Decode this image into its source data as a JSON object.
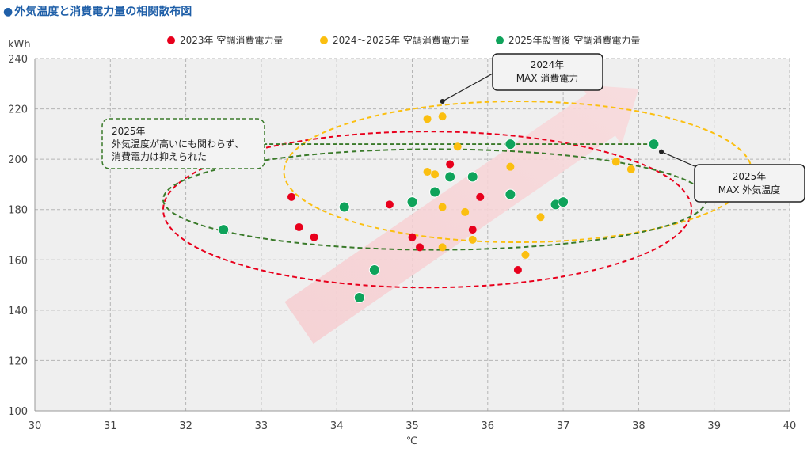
{
  "page_title": "外気温度と消費電力量の相関散布図",
  "chart_data": {
    "type": "scatter",
    "title": "外気温度と消費電力量の相関散布図",
    "xlabel": "℃",
    "ylabel": "kWh",
    "xlim": [
      30,
      40
    ],
    "ylim": [
      100,
      240
    ],
    "xticks": [
      30,
      31,
      32,
      33,
      34,
      35,
      36,
      37,
      38,
      39,
      40
    ],
    "yticks": [
      100,
      120,
      140,
      160,
      180,
      200,
      220,
      240
    ],
    "grid": true,
    "legend_position": "top-center",
    "series": [
      {
        "name": "2023年 空調消費電力量",
        "color": "#e8001c",
        "points": [
          [
            33.4,
            185
          ],
          [
            33.5,
            173
          ],
          [
            33.7,
            169
          ],
          [
            34.7,
            182
          ],
          [
            35.0,
            169
          ],
          [
            35.1,
            165
          ],
          [
            35.5,
            198
          ],
          [
            35.8,
            172
          ],
          [
            35.9,
            185
          ],
          [
            36.4,
            156
          ]
        ]
      },
      {
        "name": "2024～2025年 空調消費電力量",
        "color": "#fbbf10",
        "points": [
          [
            35.2,
            216
          ],
          [
            35.4,
            217
          ],
          [
            35.2,
            195
          ],
          [
            35.3,
            194
          ],
          [
            35.6,
            205
          ],
          [
            35.4,
            181
          ],
          [
            35.7,
            179
          ],
          [
            35.8,
            168
          ],
          [
            35.4,
            165
          ],
          [
            36.3,
            197
          ],
          [
            36.5,
            162
          ],
          [
            36.7,
            177
          ],
          [
            37.7,
            199
          ],
          [
            37.9,
            196
          ]
        ]
      },
      {
        "name": "2025年設置後 空調消費電力量",
        "color": "#0fa35b",
        "points": [
          [
            32.5,
            172
          ],
          [
            34.1,
            181
          ],
          [
            34.3,
            145
          ],
          [
            34.5,
            156
          ],
          [
            35.0,
            183
          ],
          [
            35.3,
            187
          ],
          [
            35.5,
            193
          ],
          [
            35.8,
            193
          ],
          [
            36.3,
            206
          ],
          [
            36.3,
            186
          ],
          [
            36.9,
            182
          ],
          [
            37.0,
            183
          ],
          [
            38.2,
            206
          ]
        ]
      }
    ],
    "ellipses": [
      {
        "color": "#e8001c",
        "center": [
          35.2,
          180
        ],
        "radii": [
          3.5,
          31
        ]
      },
      {
        "color": "#fbbf10",
        "center": [
          36.4,
          195
        ],
        "radii": [
          3.1,
          28
        ]
      },
      {
        "color": "#3a7a2a",
        "center": [
          35.3,
          184
        ],
        "radii": [
          3.6,
          20
        ]
      }
    ],
    "reference_line": {
      "y": 206,
      "x_range": [
        32.1,
        38.2
      ],
      "color": "#3a7a2a"
    },
    "trend_arrow": {
      "from": [
        33.5,
        135
      ],
      "to": [
        38.0,
        228
      ],
      "color": "#f8d6d8"
    },
    "annotations": [
      {
        "id": "note-2025",
        "lines": [
          "2025年",
          "外気温度が高いにも関わらず、",
          "消費電力は抑えられた"
        ],
        "border": "#3a7a2a",
        "style": "dashed"
      },
      {
        "id": "max-power-2024",
        "lines": [
          "2024年",
          "MAX  消費電力"
        ],
        "target": [
          35.4,
          223
        ],
        "border": "#222",
        "style": "solid"
      },
      {
        "id": "max-temp-2025",
        "lines": [
          "2025年",
          "MAX  外気温度"
        ],
        "target": [
          38.3,
          203
        ],
        "border": "#222",
        "style": "solid"
      }
    ]
  }
}
